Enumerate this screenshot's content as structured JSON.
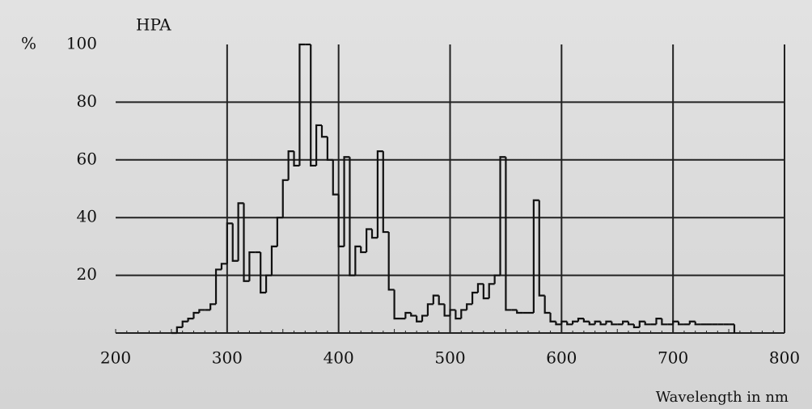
{
  "chart_data": {
    "type": "step",
    "title": "HPA",
    "y_label": "%",
    "x_label": "Wavelength in nm",
    "xlim": [
      200,
      800
    ],
    "xticks": [
      200,
      300,
      400,
      500,
      600,
      700,
      800
    ],
    "ylim": [
      0,
      100
    ],
    "yticks": [
      20,
      40,
      60,
      80,
      100
    ],
    "grid": true,
    "color": "#111111",
    "x": [
      250,
      255,
      260,
      265,
      270,
      275,
      280,
      285,
      290,
      295,
      300,
      305,
      310,
      315,
      320,
      325,
      330,
      335,
      340,
      345,
      350,
      355,
      360,
      365,
      370,
      375,
      380,
      385,
      390,
      395,
      400,
      405,
      410,
      415,
      420,
      425,
      430,
      435,
      440,
      445,
      450,
      455,
      460,
      465,
      470,
      475,
      480,
      485,
      490,
      495,
      500,
      505,
      510,
      515,
      520,
      525,
      530,
      535,
      540,
      545,
      550,
      555,
      560,
      565,
      570,
      575,
      580,
      585,
      590,
      595,
      600,
      605,
      610,
      615,
      620,
      625,
      630,
      635,
      640,
      645,
      650,
      655,
      660,
      665,
      670,
      675,
      680,
      685,
      690,
      695,
      700,
      705,
      710,
      715,
      720,
      725,
      730,
      735,
      740,
      745,
      750,
      755
    ],
    "values": [
      0,
      2,
      4,
      5,
      7,
      8,
      8,
      10,
      22,
      24,
      38,
      25,
      45,
      18,
      28,
      28,
      14,
      20,
      30,
      40,
      53,
      63,
      58,
      100,
      100,
      58,
      72,
      68,
      60,
      48,
      30,
      61,
      20,
      30,
      28,
      36,
      33,
      63,
      35,
      15,
      5,
      5,
      7,
      6,
      4,
      6,
      10,
      13,
      10,
      6,
      8,
      5,
      8,
      10,
      14,
      17,
      12,
      17,
      20,
      61,
      8,
      8,
      7,
      7,
      7,
      46,
      13,
      7,
      4,
      3,
      4,
      3,
      4,
      5,
      4,
      3,
      4,
      3,
      4,
      3,
      3,
      4,
      3,
      2,
      4,
      3,
      3,
      5,
      3,
      3,
      4,
      3,
      3,
      4,
      3,
      3,
      3,
      3,
      3,
      3,
      3,
      0
    ]
  }
}
